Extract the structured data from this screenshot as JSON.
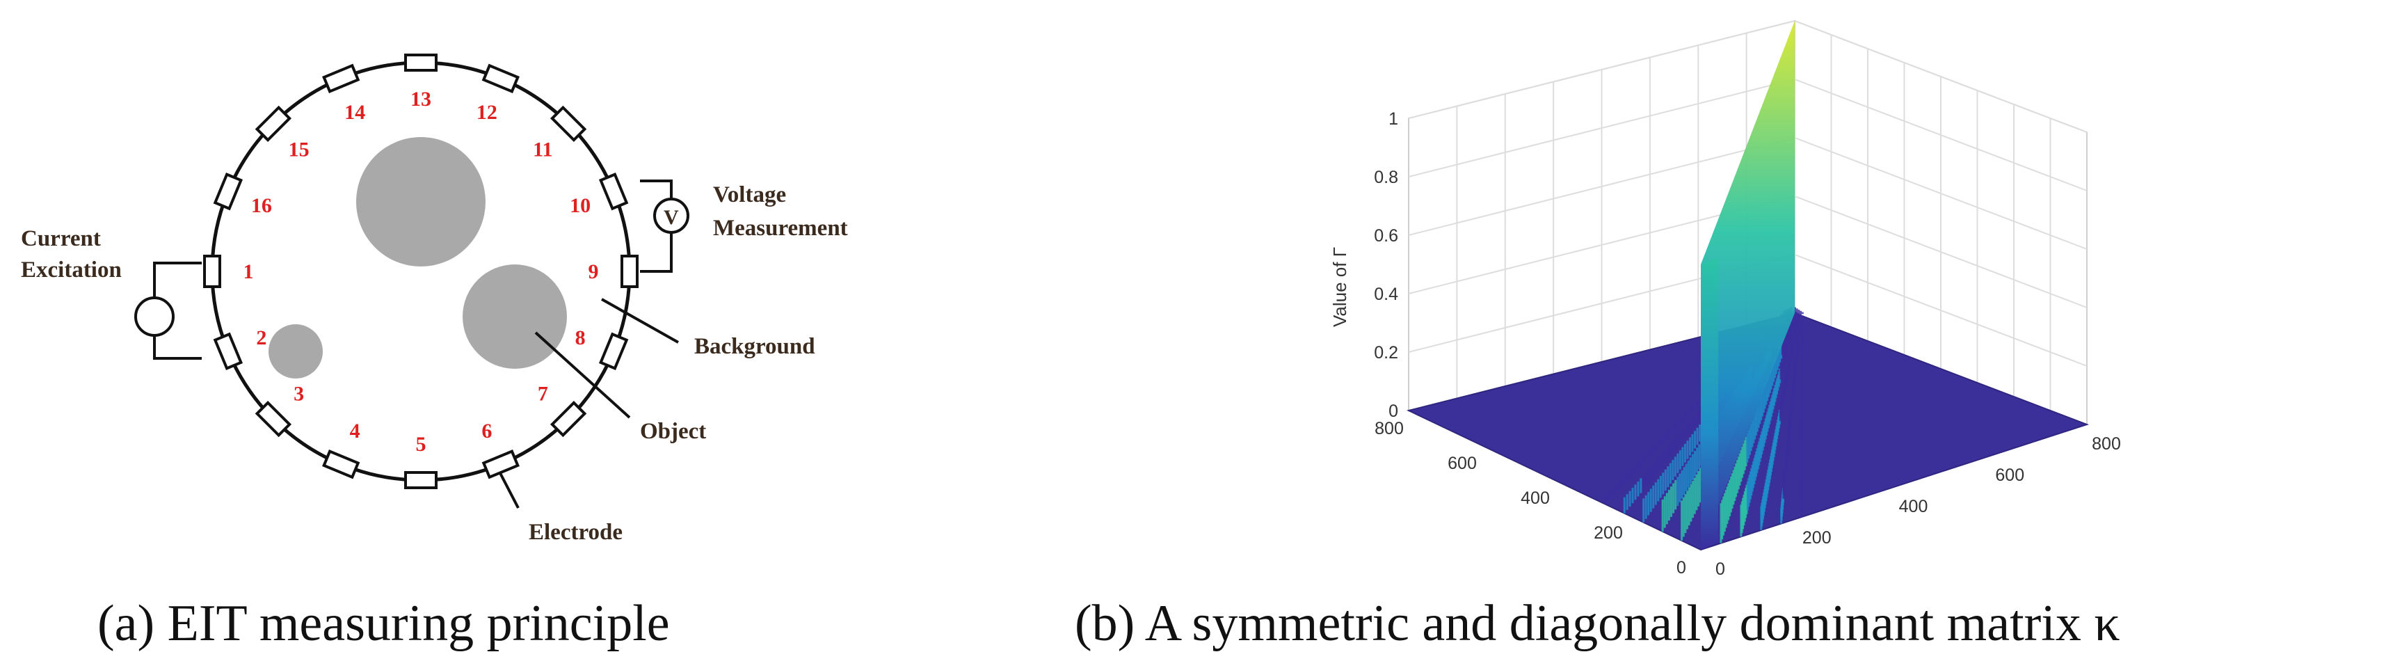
{
  "panel_a": {
    "caption": "(a) EIT measuring principle",
    "electrodes": [
      "1",
      "2",
      "3",
      "4",
      "5",
      "6",
      "7",
      "8",
      "9",
      "10",
      "11",
      "12",
      "13",
      "14",
      "15",
      "16"
    ],
    "labels": {
      "current_line1": "Current",
      "current_line2": "Excitation",
      "voltage_line1": "Voltage",
      "voltage_line2": "Measurement",
      "voltmeter": "V",
      "background": "Background",
      "object": "Object",
      "electrode": "Electrode"
    },
    "colors": {
      "electrode_numbers": "#e02020",
      "objects": "#a9a9a9",
      "labels": "#3b2a1e"
    }
  },
  "panel_b": {
    "caption": "(b) A symmetric and diagonally dominant matrix κ",
    "chart_data": {
      "type": "surface",
      "title": "",
      "zlabel": "Value of Γ",
      "x_ticks": [
        "0",
        "200",
        "400",
        "600",
        "800"
      ],
      "y_ticks": [
        "0",
        "200",
        "400",
        "600",
        "800"
      ],
      "z_ticks": [
        "0",
        "0.2",
        "0.4",
        "0.6",
        "0.8",
        "1"
      ],
      "xlim": [
        0,
        800
      ],
      "ylim": [
        0,
        800
      ],
      "zlim": [
        0,
        1
      ],
      "grid": true,
      "diagonal_peak": 1.0,
      "off_diagonal_value": 0.0,
      "colormap": [
        "#3b2d9e",
        "#1f8ec9",
        "#2cc4a6",
        "#d8e830"
      ]
    }
  }
}
